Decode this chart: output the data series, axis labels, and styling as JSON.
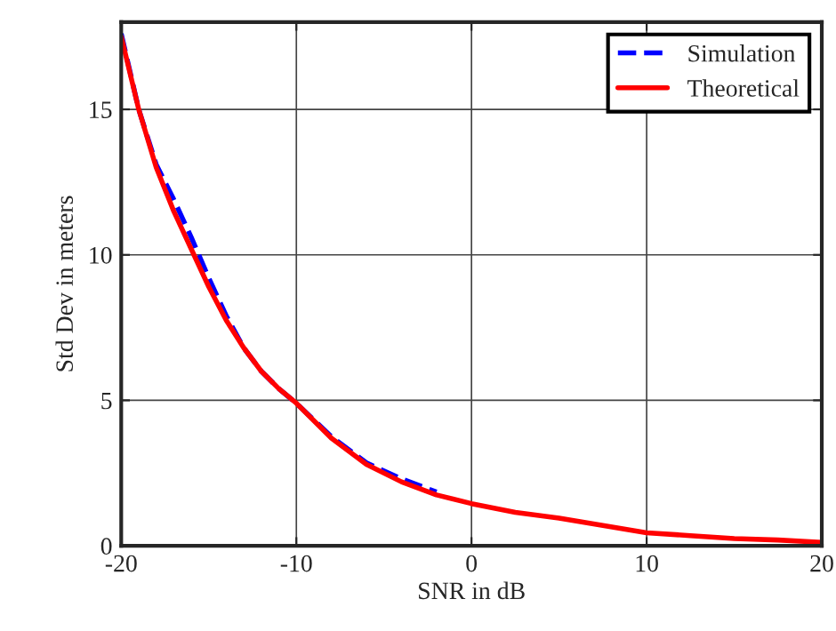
{
  "chart_data": {
    "type": "line",
    "xlabel": "SNR in dB",
    "ylabel": "Std Dev in meters",
    "x": [
      -20,
      -19,
      -18,
      -17,
      -16,
      -15,
      -14,
      -13,
      -12,
      -11,
      -10,
      -8,
      -6,
      -4,
      -2,
      0,
      2.5,
      5,
      7.5,
      10,
      12.5,
      15,
      17.5,
      20
    ],
    "series": [
      {
        "name": "Simulation",
        "color": "#0000ff",
        "line_style": "dashed",
        "values": [
          17.6,
          15.0,
          13.1,
          11.9,
          10.6,
          9.2,
          7.9,
          6.8,
          6.0,
          5.4,
          4.9,
          3.75,
          2.85,
          2.3,
          1.85,
          null,
          null,
          null,
          null,
          null,
          null,
          null,
          null,
          null
        ]
      },
      {
        "name": "Theoretical",
        "color": "#ff0000",
        "line_style": "solid",
        "values": [
          17.5,
          15.0,
          13.0,
          11.5,
          10.2,
          8.9,
          7.75,
          6.8,
          6.0,
          5.4,
          4.9,
          3.7,
          2.8,
          2.2,
          1.75,
          1.45,
          1.15,
          0.95,
          0.7,
          0.45,
          0.35,
          0.25,
          0.2,
          0.12
        ]
      }
    ],
    "xlim": [
      -20,
      20
    ],
    "xticks": [
      -20,
      -10,
      0,
      10,
      20
    ],
    "ylim": [
      0,
      18
    ],
    "yticks": [
      0,
      5,
      10,
      15
    ],
    "grid": true,
    "legend": "top right"
  }
}
